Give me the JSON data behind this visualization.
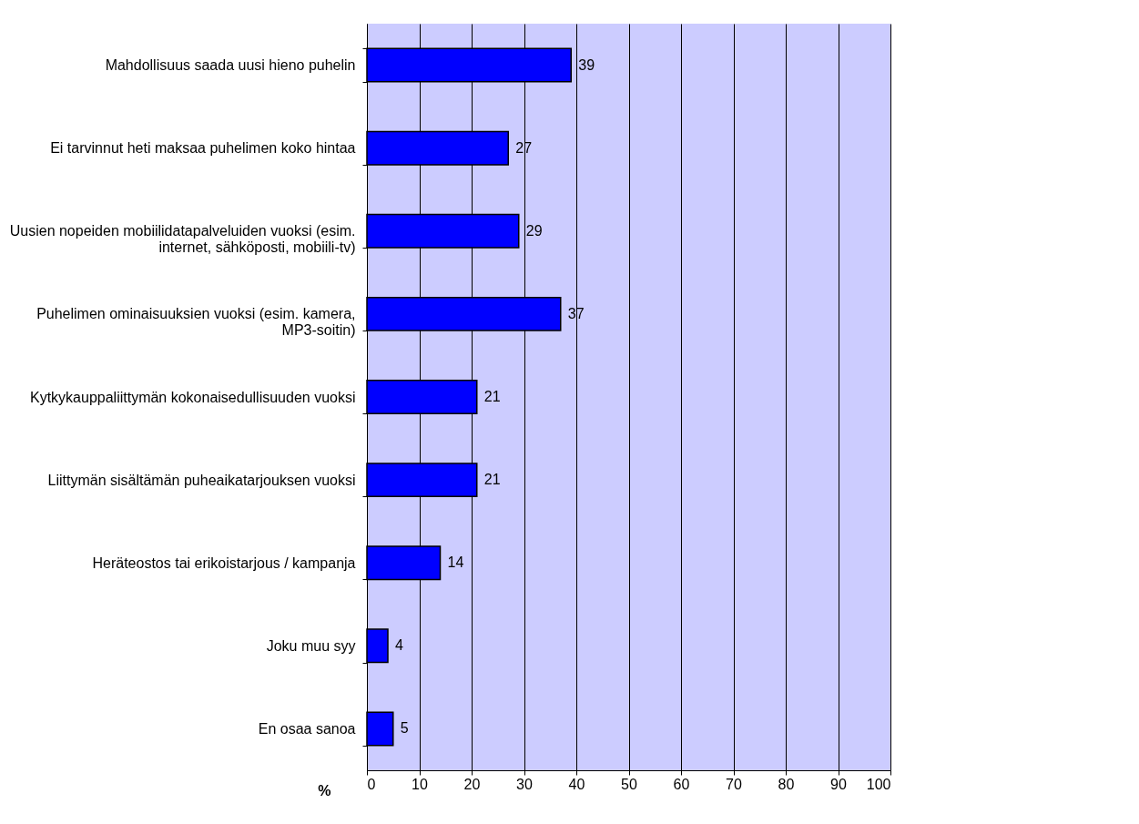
{
  "chart_data": {
    "type": "bar",
    "orientation": "horizontal",
    "categories": [
      "Mahdollisuus saada uusi hieno puhelin",
      "Ei tarvinnut heti maksaa puhelimen koko hintaa",
      "Uusien nopeiden mobiilidatapalveluiden vuoksi (esim. internet, sähköposti, mobiili-tv)",
      "Puhelimen ominaisuuksien vuoksi (esim. kamera, MP3-soitin)",
      "Kytkykauppaliittymän kokonaisedullisuuden vuoksi",
      "Liittymän sisältämän puheaikatarjouksen vuoksi",
      "Heräteostos tai erikoistarjous / kampanja",
      "Joku muu syy",
      "En osaa sanoa"
    ],
    "values": [
      39,
      27,
      29,
      37,
      21,
      21,
      14,
      4,
      5
    ],
    "color": "#0000ff",
    "xlabel": "%",
    "xlim": [
      0,
      100
    ],
    "xticks": [
      0,
      10,
      20,
      30,
      40,
      50,
      60,
      70,
      80,
      90,
      100
    ],
    "grid": "x",
    "data_labels": true
  }
}
